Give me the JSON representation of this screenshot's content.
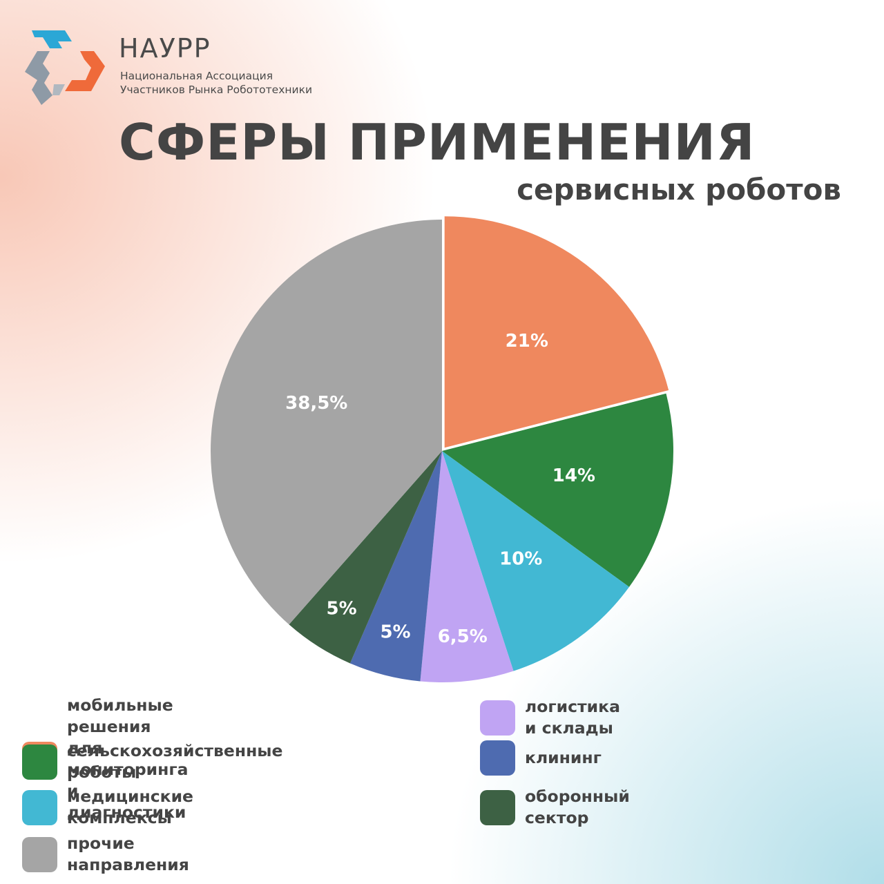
{
  "brand": {
    "name": "НАУРР",
    "full_name_line1": "Национальная Ассоциация",
    "full_name_line2": "Участников Рынка Робототехники",
    "logo_icon": "hexagonal-arrows-logo",
    "colors": {
      "blue": "#2ba7d6",
      "orange": "#ef6a3a",
      "gray": "#8e9aa6"
    }
  },
  "heading": {
    "title": "СФЕРЫ ПРИМЕНЕНИЯ",
    "subtitle": "сервисных роботов"
  },
  "chart_data": {
    "type": "pie",
    "slices": [
      {
        "name": "мобильные решения для\nмониторинга и диагностики",
        "value": 21,
        "label": "21%",
        "color": "#ef885e"
      },
      {
        "name": "сельскохозяйственные роботы",
        "value": 14,
        "label": "14%",
        "color": "#2d8740"
      },
      {
        "name": "медицинские комплексы",
        "value": 10,
        "label": "10%",
        "color": "#42b8d3"
      },
      {
        "name": "логистика и склады",
        "value": 6.5,
        "label": "6,5%",
        "color": "#c0a4f3"
      },
      {
        "name": "клининг",
        "value": 5,
        "label": "5%",
        "color": "#4e6bb0"
      },
      {
        "name": "оборонный сектор",
        "value": 5,
        "label": "5%",
        "color": "#3d6144"
      },
      {
        "name": "прочие направления",
        "value": 38.5,
        "label": "38,5%",
        "color": "#a5a5a5"
      }
    ],
    "exploded_slice": "мобильные решения для\nмониторинга и диагностики",
    "legend_placement": "bottom"
  }
}
